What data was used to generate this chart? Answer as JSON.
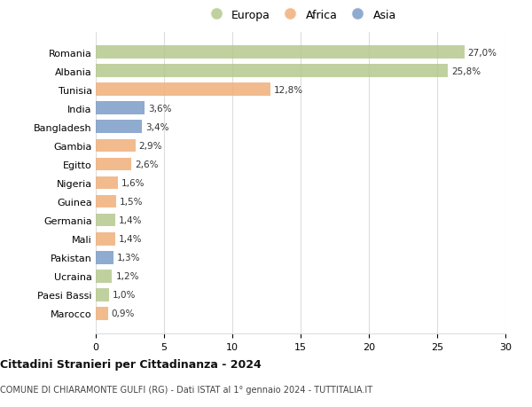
{
  "categories": [
    "Romania",
    "Albania",
    "Tunisia",
    "India",
    "Bangladesh",
    "Gambia",
    "Egitto",
    "Nigeria",
    "Guinea",
    "Germania",
    "Mali",
    "Pakistan",
    "Ucraina",
    "Paesi Bassi",
    "Marocco"
  ],
  "values": [
    27.0,
    25.8,
    12.8,
    3.6,
    3.4,
    2.9,
    2.6,
    1.6,
    1.5,
    1.4,
    1.4,
    1.3,
    1.2,
    1.0,
    0.9
  ],
  "labels": [
    "27,0%",
    "25,8%",
    "12,8%",
    "3,6%",
    "3,4%",
    "2,9%",
    "2,6%",
    "1,6%",
    "1,5%",
    "1,4%",
    "1,4%",
    "1,3%",
    "1,2%",
    "1,0%",
    "0,9%"
  ],
  "continents": [
    "Europa",
    "Europa",
    "Africa",
    "Asia",
    "Asia",
    "Africa",
    "Africa",
    "Africa",
    "Africa",
    "Europa",
    "Africa",
    "Asia",
    "Europa",
    "Europa",
    "Africa"
  ],
  "colors": {
    "Europa": "#b5c98e",
    "Africa": "#f0b07a",
    "Asia": "#7b9dc7"
  },
  "legend_entries": [
    "Europa",
    "Africa",
    "Asia"
  ],
  "xlim": [
    0,
    30
  ],
  "xticks": [
    0,
    5,
    10,
    15,
    20,
    25,
    30
  ],
  "title": "Cittadini Stranieri per Cittadinanza - 2024",
  "subtitle": "COMUNE DI CHIARAMONTE GULFI (RG) - Dati ISTAT al 1° gennaio 2024 - TUTTITALIA.IT",
  "bg_color": "#ffffff",
  "grid_color": "#dddddd"
}
